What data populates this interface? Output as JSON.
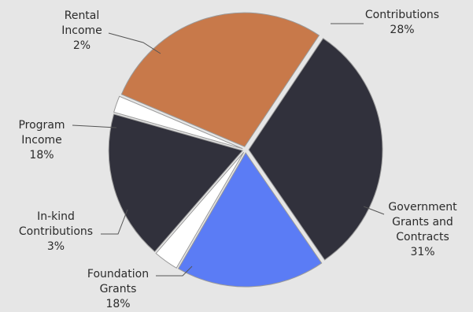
{
  "chart_data": {
    "type": "pie",
    "slices": [
      {
        "name_lines": [
          "Contributions"
        ],
        "value_label": "28%",
        "value": 28,
        "color": "#c8794a"
      },
      {
        "name_lines": [
          "Government",
          "Grants and",
          "Contracts"
        ],
        "value_label": "31%",
        "value": 31,
        "color": "#31313c"
      },
      {
        "name_lines": [
          "Foundation",
          "Grants"
        ],
        "value_label": "18%",
        "value": 18,
        "color": "#5b7cf5"
      },
      {
        "name_lines": [
          "In-kind",
          "Contributions"
        ],
        "value_label": "3%",
        "value": 3,
        "color": "#ffffff"
      },
      {
        "name_lines": [
          "Program",
          "Income"
        ],
        "value_label": "18%",
        "value": 18,
        "color": "#31313c"
      },
      {
        "name_lines": [
          "Rental",
          "Income"
        ],
        "value_label": "2%",
        "value": 2,
        "color": "#ffffff"
      }
    ]
  }
}
